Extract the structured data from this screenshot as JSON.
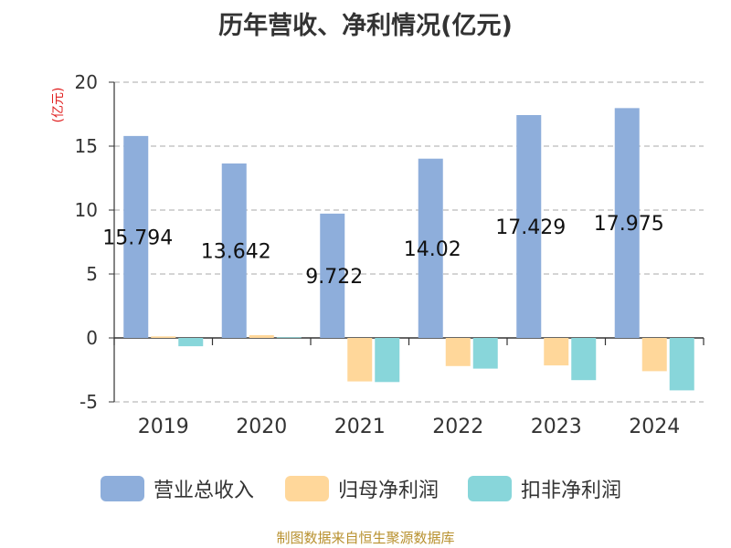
{
  "title": "历年营收、净利情况(亿元)",
  "source": "制图数据来自恒生聚源数据库",
  "chart_data": {
    "type": "bar",
    "title": "历年营收、净利情况(亿元)",
    "ylabel": "(亿元)",
    "ylim": [
      -5,
      20
    ],
    "yticks": [
      20,
      15,
      10,
      5,
      0,
      -5
    ],
    "grid": true,
    "legend_position": "bottom",
    "categories": [
      "2019",
      "2020",
      "2021",
      "2022",
      "2023",
      "2024"
    ],
    "series": [
      {
        "name": "营业总收入",
        "color": "#8eaedb",
        "values": [
          15.794,
          13.642,
          9.722,
          14.02,
          17.429,
          17.975
        ],
        "labels": [
          "15.794",
          "13.642",
          "9.722",
          "14.02",
          "17.429",
          "17.975"
        ]
      },
      {
        "name": "归母净利润",
        "color": "#ffd79a",
        "values": [
          0.12,
          0.22,
          -3.4,
          -2.2,
          -2.15,
          -2.6
        ]
      },
      {
        "name": "扣非净利润",
        "color": "#88d6da",
        "values": [
          -0.65,
          0.05,
          -3.45,
          -2.4,
          -3.3,
          -4.1
        ]
      }
    ]
  }
}
